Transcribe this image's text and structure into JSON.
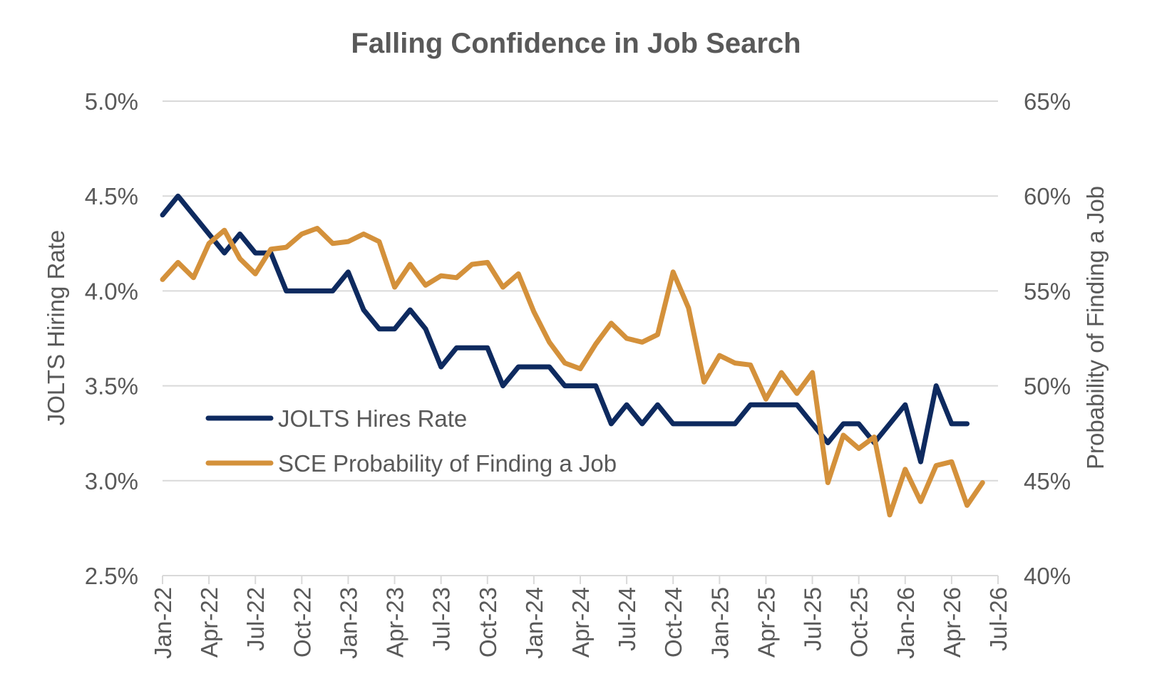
{
  "chart_data": {
    "type": "line",
    "title": "Falling Confidence in Job Search",
    "ylabel": "JOLTS Hiring Rate",
    "y2label": "Probability of Finding a Job",
    "ylim": [
      2.5,
      5.0
    ],
    "y2lim": [
      40,
      65
    ],
    "yticks": [
      "2.5%",
      "3.0%",
      "3.5%",
      "4.0%",
      "4.5%",
      "5.0%"
    ],
    "y2ticks": [
      "40%",
      "45%",
      "50%",
      "55%",
      "60%",
      "65%"
    ],
    "xticks": [
      "Jan-22",
      "Apr-22",
      "Jul-22",
      "Oct-22",
      "Jan-23",
      "Apr-23",
      "Jul-23",
      "Oct-23",
      "Jan-24",
      "Apr-24",
      "Jul-24",
      "Oct-24",
      "Jan-25",
      "Apr-25",
      "Jul-25",
      "Oct-25",
      "Jan-26",
      "Apr-26",
      "Jul-26"
    ],
    "x_start": "2022-01",
    "x_end": "2026-07",
    "grid": true,
    "legend_position": "lower-left",
    "series": [
      {
        "name": "JOLTS Hires Rate",
        "axis": "left",
        "color": "#0e2a5f",
        "x": [
          "2022-01",
          "2022-02",
          "2022-03",
          "2022-04",
          "2022-05",
          "2022-06",
          "2022-07",
          "2022-08",
          "2022-09",
          "2022-10",
          "2022-11",
          "2022-12",
          "2023-01",
          "2023-02",
          "2023-03",
          "2023-04",
          "2023-05",
          "2023-06",
          "2023-07",
          "2023-08",
          "2023-09",
          "2023-10",
          "2023-11",
          "2023-12",
          "2024-01",
          "2024-02",
          "2024-03",
          "2024-04",
          "2024-05",
          "2024-06",
          "2024-07",
          "2024-08",
          "2024-09",
          "2024-10",
          "2024-11",
          "2024-12",
          "2025-01",
          "2025-02",
          "2025-03",
          "2025-04",
          "2025-05",
          "2025-06",
          "2025-07",
          "2025-08",
          "2025-09",
          "2025-10",
          "2025-11",
          "2025-12",
          "2026-01",
          "2026-02",
          "2026-03",
          "2026-04",
          "2026-05"
        ],
        "values": [
          4.4,
          4.5,
          4.4,
          4.3,
          4.2,
          4.3,
          4.2,
          4.2,
          4.0,
          4.0,
          4.0,
          4.0,
          4.1,
          3.9,
          3.8,
          3.8,
          3.9,
          3.8,
          3.6,
          3.7,
          3.7,
          3.7,
          3.5,
          3.6,
          3.6,
          3.6,
          3.5,
          3.5,
          3.5,
          3.3,
          3.4,
          3.3,
          3.4,
          3.3,
          3.3,
          3.3,
          3.3,
          3.3,
          3.4,
          3.4,
          3.4,
          3.4,
          3.3,
          3.2,
          3.3,
          3.3,
          3.2,
          3.3,
          3.4,
          3.1,
          3.5,
          3.3,
          3.3
        ]
      },
      {
        "name": "SCE Probability of Finding a Job",
        "axis": "right",
        "color": "#d4913b",
        "x": [
          "2022-01",
          "2022-02",
          "2022-03",
          "2022-04",
          "2022-05",
          "2022-06",
          "2022-07",
          "2022-08",
          "2022-09",
          "2022-10",
          "2022-11",
          "2022-12",
          "2023-01",
          "2023-02",
          "2023-03",
          "2023-04",
          "2023-05",
          "2023-06",
          "2023-07",
          "2023-08",
          "2023-09",
          "2023-10",
          "2023-11",
          "2023-12",
          "2024-01",
          "2024-02",
          "2024-03",
          "2024-04",
          "2024-05",
          "2024-06",
          "2024-07",
          "2024-08",
          "2024-09",
          "2024-10",
          "2024-11",
          "2024-12",
          "2025-01",
          "2025-02",
          "2025-03",
          "2025-04",
          "2025-05",
          "2025-06",
          "2025-07",
          "2025-08",
          "2025-09",
          "2025-10",
          "2025-11",
          "2025-12",
          "2026-01",
          "2026-02",
          "2026-03",
          "2026-04",
          "2026-05",
          "2026-06"
        ],
        "values": [
          55.6,
          56.5,
          55.7,
          57.5,
          58.2,
          56.7,
          55.9,
          57.2,
          57.3,
          58.0,
          58.3,
          57.5,
          57.6,
          58.0,
          57.6,
          55.2,
          56.4,
          55.3,
          55.8,
          55.7,
          56.4,
          56.5,
          55.2,
          55.9,
          53.9,
          52.3,
          51.2,
          50.9,
          52.2,
          53.3,
          52.5,
          52.3,
          52.7,
          56.0,
          54.1,
          50.2,
          51.6,
          51.2,
          51.1,
          49.3,
          50.7,
          49.6,
          50.7,
          44.9,
          47.4,
          46.7,
          47.3,
          43.2,
          45.6,
          43.9,
          45.8,
          46.0,
          43.7,
          44.9
        ]
      }
    ]
  }
}
